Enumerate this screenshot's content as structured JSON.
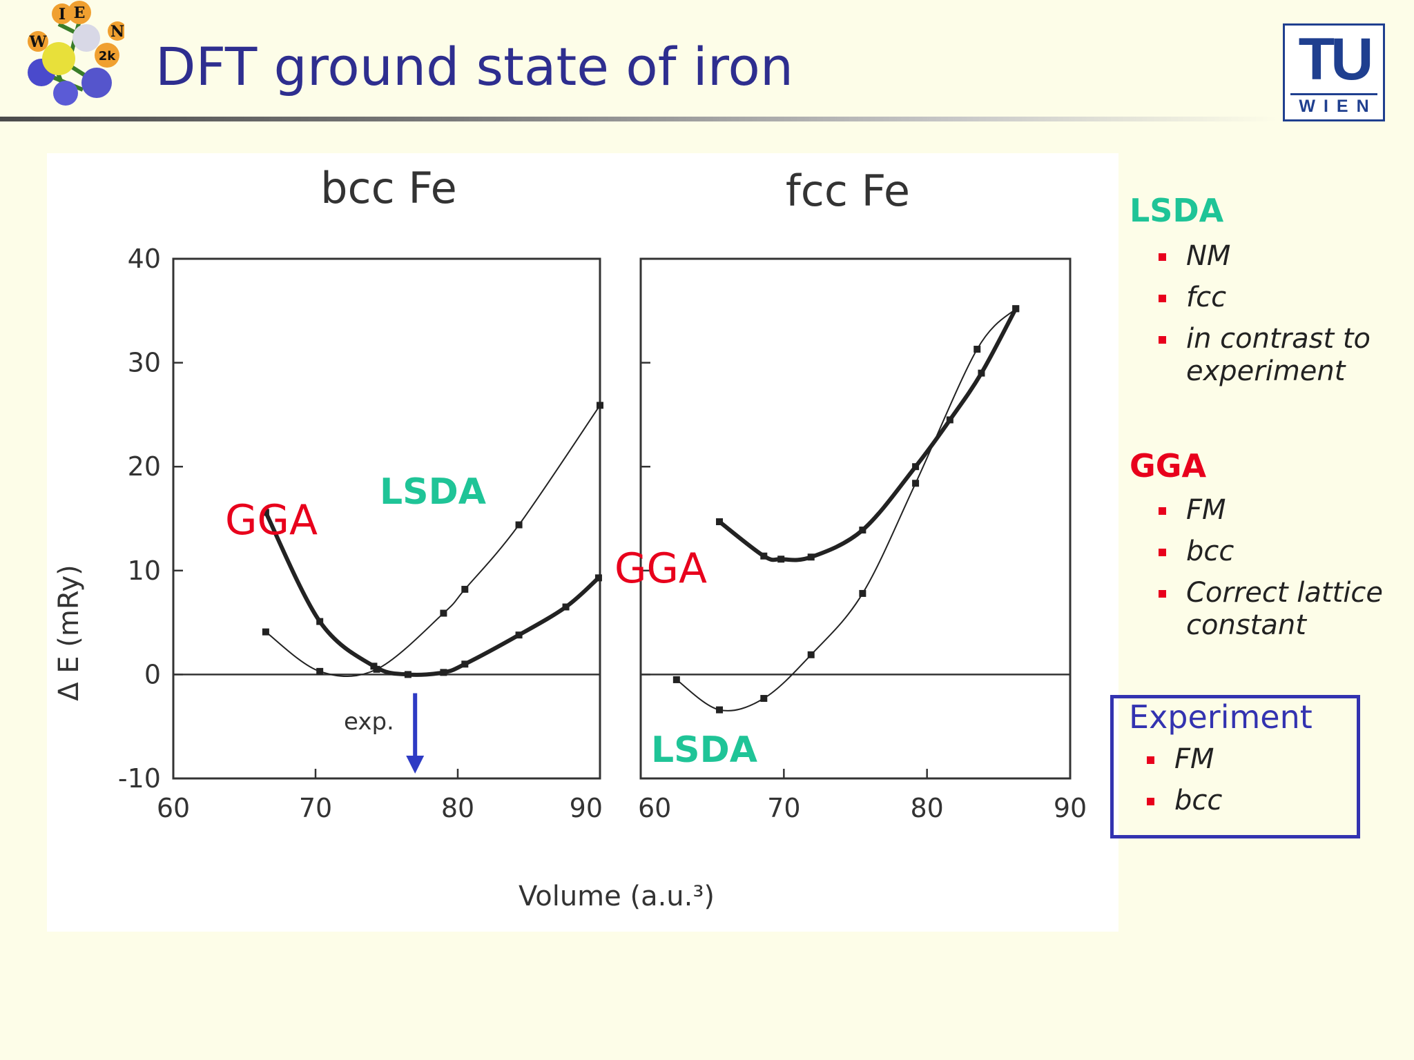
{
  "slide": {
    "title": "DFT ground state of iron"
  },
  "colors": {
    "lsda": "#1fc497",
    "gga": "#e8001c",
    "experiment": "#3333b0",
    "title": "#2e2e8f",
    "bullet": "#e8001c"
  },
  "logos": {
    "left": "WIEN2k",
    "left_letters": [
      "W",
      "I",
      "E",
      "N",
      "2k"
    ],
    "right_top": "TU",
    "right_bottom": "WIEN"
  },
  "figure": {
    "ylabel": "Δ E (mRy)",
    "xlabel": "Volume (a.u.³)",
    "annotations": {
      "gga": "GGA",
      "lsda": "LSDA",
      "exp": "exp."
    }
  },
  "chart_data": [
    {
      "type": "line",
      "title": "bcc Fe",
      "xlim": [
        60,
        90
      ],
      "ylim": [
        -10,
        40
      ],
      "xticks": [
        "60",
        "70",
        "80",
        "90"
      ],
      "yticks": [
        "40",
        "30",
        "20",
        "10",
        "0",
        "-10"
      ],
      "series": [
        {
          "name": "LSDA",
          "points": [
            [
              66.5,
              4.1
            ],
            [
              70.3,
              0.3
            ],
            [
              74.3,
              0.5
            ],
            [
              79,
              5.9
            ],
            [
              80.5,
              8.2
            ],
            [
              84.3,
              14.4
            ],
            [
              90,
              25.9
            ]
          ]
        },
        {
          "name": "GGA",
          "points": [
            [
              66.5,
              15.6
            ],
            [
              70.3,
              5.1
            ],
            [
              74.1,
              0.8
            ],
            [
              76.5,
              0.0
            ],
            [
              79,
              0.2
            ],
            [
              80.5,
              1.0
            ],
            [
              84.3,
              3.8
            ],
            [
              87.6,
              6.5
            ],
            [
              89.9,
              9.3
            ]
          ]
        }
      ],
      "exp_volume": 77.0
    },
    {
      "type": "line",
      "title": "fcc Fe",
      "xlim": [
        60,
        90
      ],
      "ylim": [
        -10,
        40
      ],
      "xticks": [
        "60",
        "70",
        "80",
        "90"
      ],
      "series": [
        {
          "name": "LSDA",
          "points": [
            [
              62.5,
              -0.5
            ],
            [
              65.5,
              -3.4
            ],
            [
              68.6,
              -2.3
            ],
            [
              71.9,
              1.9
            ],
            [
              75.5,
              7.8
            ],
            [
              79.2,
              18.4
            ],
            [
              83.5,
              31.3
            ],
            [
              86.2,
              35.2
            ]
          ]
        },
        {
          "name": "GGA",
          "points": [
            [
              65.5,
              14.7
            ],
            [
              68.6,
              11.4
            ],
            [
              69.8,
              11.1
            ],
            [
              71.9,
              11.3
            ],
            [
              75.5,
              13.9
            ],
            [
              79.2,
              20.0
            ],
            [
              81.6,
              24.5
            ],
            [
              83.8,
              29.0
            ],
            [
              86.2,
              35.2
            ]
          ]
        }
      ]
    }
  ],
  "sidebar": {
    "lsda": {
      "heading": "LSDA",
      "items": [
        "NM",
        "fcc",
        "in contrast to experiment"
      ]
    },
    "gga": {
      "heading": "GGA",
      "items": [
        "FM",
        "bcc",
        "Correct lattice constant"
      ]
    },
    "experiment": {
      "heading": "Experiment",
      "items": [
        "FM",
        "bcc"
      ]
    }
  }
}
